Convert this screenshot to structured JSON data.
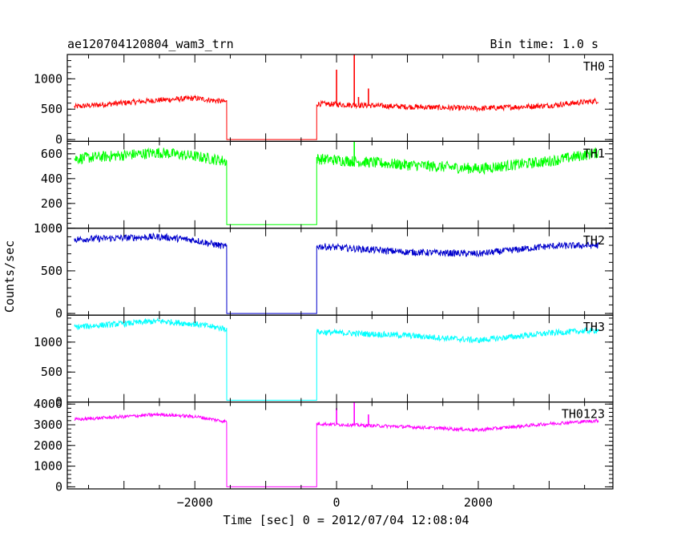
{
  "chart_data": {
    "type": "line",
    "title": "ae120704120804_wam3_trn",
    "subtitle": "Bin time: 1.0 s",
    "xlabel": "Time [sec] 0 = 2012/07/04 12:08:04",
    "ylabel": "Counts/sec",
    "xlim": [
      -3800,
      3900
    ],
    "x_ticks": [
      -2000,
      0,
      2000
    ],
    "gap": [
      -1550,
      -280
    ],
    "x_range": [
      -3700,
      3700
    ],
    "panels": [
      {
        "name": "TH0",
        "color": "#ff0000",
        "ylim": [
          -30,
          1400
        ],
        "y_ticks": [
          0,
          500,
          1000
        ],
        "gap_level": 0,
        "noise": 45,
        "profile": [
          [
            -3700,
            540
          ],
          [
            -2500,
            650
          ],
          [
            -2000,
            680
          ],
          [
            -1550,
            620
          ],
          [
            -280,
            590
          ],
          [
            1000,
            540
          ],
          [
            2000,
            510
          ],
          [
            3000,
            560
          ],
          [
            3700,
            640
          ]
        ],
        "spikes": [
          [
            0,
            1150
          ],
          [
            250,
            1420
          ],
          [
            450,
            840
          ],
          [
            310,
            700
          ]
        ]
      },
      {
        "name": "TH1",
        "color": "#00ff00",
        "ylim": [
          0,
          700
        ],
        "y_ticks": [
          0,
          200,
          400,
          600
        ],
        "gap_level": 30,
        "noise": 45,
        "profile": [
          [
            -3700,
            560
          ],
          [
            -2500,
            610
          ],
          [
            -2000,
            580
          ],
          [
            -1550,
            540
          ],
          [
            -280,
            560
          ],
          [
            1000,
            510
          ],
          [
            2000,
            480
          ],
          [
            3000,
            540
          ],
          [
            3700,
            610
          ]
        ],
        "spikes": [
          [
            250,
            720
          ]
        ]
      },
      {
        "name": "TH2",
        "color": "#0000cc",
        "ylim": [
          -20,
          1000
        ],
        "y_ticks": [
          0,
          500,
          1000
        ],
        "gap_level": 0,
        "noise": 40,
        "profile": [
          [
            -3700,
            870
          ],
          [
            -2500,
            900
          ],
          [
            -2000,
            860
          ],
          [
            -1550,
            780
          ],
          [
            -280,
            790
          ],
          [
            1000,
            720
          ],
          [
            2000,
            700
          ],
          [
            3000,
            790
          ],
          [
            3700,
            800
          ]
        ],
        "spikes": []
      },
      {
        "name": "TH3",
        "color": "#00ffff",
        "ylim": [
          0,
          1450
        ],
        "y_ticks": [
          0,
          500,
          1000
        ],
        "gap_level": 30,
        "noise": 50,
        "profile": [
          [
            -3700,
            1250
          ],
          [
            -2500,
            1350
          ],
          [
            -2000,
            1300
          ],
          [
            -1550,
            1220
          ],
          [
            -280,
            1170
          ],
          [
            1000,
            1110
          ],
          [
            2000,
            1030
          ],
          [
            3000,
            1150
          ],
          [
            3700,
            1200
          ]
        ],
        "spikes": []
      },
      {
        "name": "TH0123",
        "color": "#ff00ff",
        "ylim": [
          -100,
          4100
        ],
        "y_ticks": [
          0,
          1000,
          2000,
          3000,
          4000
        ],
        "gap_level": 0,
        "noise": 80,
        "profile": [
          [
            -3700,
            3250
          ],
          [
            -2500,
            3500
          ],
          [
            -2000,
            3400
          ],
          [
            -1550,
            3150
          ],
          [
            -280,
            3050
          ],
          [
            1000,
            2900
          ],
          [
            2000,
            2750
          ],
          [
            3000,
            3050
          ],
          [
            3700,
            3200
          ]
        ],
        "spikes": [
          [
            0,
            3800
          ],
          [
            250,
            4150
          ],
          [
            450,
            3500
          ]
        ]
      }
    ]
  }
}
